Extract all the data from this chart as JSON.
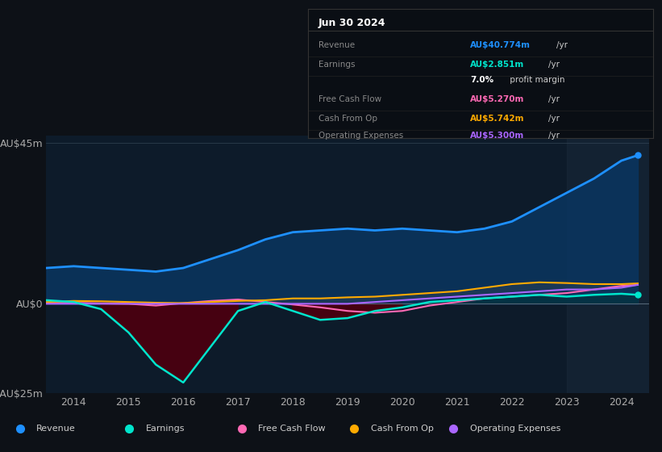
{
  "background_color": "#0d1117",
  "plot_bg_color": "#0d1b2a",
  "title_box_date": "Jun 30 2024",
  "years": [
    2013.5,
    2014,
    2014.5,
    2015,
    2015.5,
    2016,
    2016.5,
    2017,
    2017.5,
    2018,
    2018.5,
    2019,
    2019.5,
    2020,
    2020.5,
    2021,
    2021.5,
    2022,
    2022.5,
    2023,
    2023.5,
    2024,
    2024.3
  ],
  "revenue": [
    10.0,
    10.5,
    10.0,
    9.5,
    9.0,
    10.0,
    12.5,
    15.0,
    18.0,
    20.0,
    20.5,
    21.0,
    20.5,
    21.0,
    20.5,
    20.0,
    21.0,
    23.0,
    27.0,
    31.0,
    35.0,
    40.0,
    41.5
  ],
  "earnings": [
    1.0,
    0.5,
    -1.5,
    -8.0,
    -17.0,
    -22.0,
    -12.0,
    -2.0,
    0.5,
    -2.0,
    -4.5,
    -4.0,
    -2.0,
    -1.0,
    0.5,
    1.0,
    1.5,
    2.0,
    2.5,
    2.0,
    2.5,
    2.8,
    2.5
  ],
  "free_cash_flow": [
    0.2,
    0.3,
    0.1,
    0.0,
    -0.5,
    0.2,
    0.8,
    1.2,
    0.5,
    -0.2,
    -1.0,
    -2.0,
    -2.5,
    -2.0,
    -0.5,
    0.5,
    1.5,
    2.0,
    2.5,
    3.0,
    4.0,
    5.0,
    5.3
  ],
  "cash_from_op": [
    0.5,
    0.8,
    0.7,
    0.5,
    0.3,
    0.2,
    0.5,
    0.8,
    1.0,
    1.5,
    1.5,
    1.8,
    2.0,
    2.5,
    3.0,
    3.5,
    4.5,
    5.5,
    6.0,
    5.8,
    5.5,
    5.5,
    5.7
  ],
  "op_expenses": [
    0.0,
    0.0,
    0.0,
    0.0,
    0.0,
    0.0,
    0.0,
    0.0,
    0.0,
    0.0,
    0.0,
    0.0,
    0.5,
    1.0,
    1.5,
    2.0,
    2.5,
    3.0,
    3.5,
    4.0,
    4.0,
    4.5,
    5.3
  ],
  "revenue_color": "#1e90ff",
  "earnings_color": "#00e5cc",
  "fcf_color": "#ff69b4",
  "cash_op_color": "#ffaa00",
  "op_exp_color": "#aa66ff",
  "revenue_fill": "#0a3560",
  "earnings_neg_fill": "#4a0010",
  "ylim": [
    -25,
    47
  ],
  "yticks": [
    -25,
    0,
    45
  ],
  "ytick_labels": [
    "-AU$25m",
    "AU$0",
    "AU$45m"
  ],
  "xlim": [
    2013.5,
    2024.5
  ],
  "xtick_years": [
    2014,
    2015,
    2016,
    2017,
    2018,
    2019,
    2020,
    2021,
    2022,
    2023,
    2024
  ],
  "legend_items": [
    {
      "label": "Revenue",
      "color": "#1e90ff"
    },
    {
      "label": "Earnings",
      "color": "#00e5cc"
    },
    {
      "label": "Free Cash Flow",
      "color": "#ff69b4"
    },
    {
      "label": "Cash From Op",
      "color": "#ffaa00"
    },
    {
      "label": "Operating Expenses",
      "color": "#aa66ff"
    }
  ],
  "info_rows": [
    {
      "label": "Revenue",
      "value": "AU$40.774m",
      "unit": "/yr",
      "color": "#1e90ff"
    },
    {
      "label": "Earnings",
      "value": "AU$2.851m",
      "unit": "/yr",
      "color": "#00e5cc"
    },
    {
      "label": "",
      "value": "7.0%",
      "unit": " profit margin",
      "color": "#ffffff"
    },
    {
      "label": "Free Cash Flow",
      "value": "AU$5.270m",
      "unit": "/yr",
      "color": "#ff69b4"
    },
    {
      "label": "Cash From Op",
      "value": "AU$5.742m",
      "unit": "/yr",
      "color": "#ffaa00"
    },
    {
      "label": "Operating Expenses",
      "value": "AU$5.300m",
      "unit": "/yr",
      "color": "#aa66ff"
    }
  ]
}
